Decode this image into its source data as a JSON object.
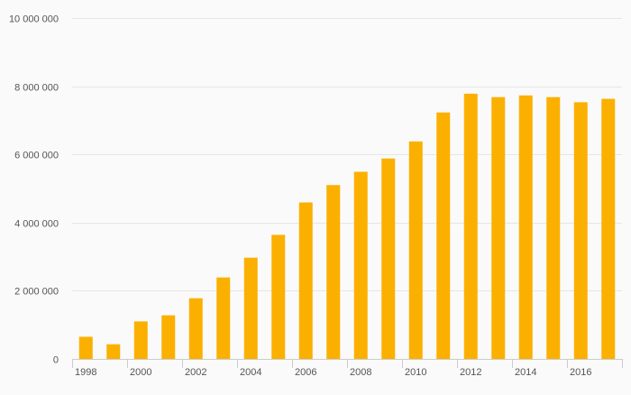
{
  "chart_data": {
    "type": "bar",
    "title": "",
    "xlabel": "",
    "ylabel": "",
    "categories": [
      "1998",
      "1999",
      "2000",
      "2001",
      "2002",
      "2003",
      "2004",
      "2005",
      "2006",
      "2007",
      "2008",
      "2009",
      "2010",
      "2011",
      "2012",
      "2013",
      "2014",
      "2015",
      "2016",
      "2017"
    ],
    "x_tick_labels": [
      "1998",
      "",
      "2000",
      "",
      "2002",
      "",
      "2004",
      "",
      "2006",
      "",
      "2008",
      "",
      "2010",
      "",
      "2012",
      "",
      "2014",
      "",
      "2016",
      ""
    ],
    "values": [
      650000,
      430000,
      1100000,
      1280000,
      1780000,
      2390000,
      2970000,
      3640000,
      4590000,
      5100000,
      5490000,
      5880000,
      6380000,
      7230000,
      7780000,
      7680000,
      7730000,
      7680000,
      7530000,
      7630000
    ],
    "ylim": [
      0,
      10000000
    ],
    "y_ticks": [
      {
        "value": 0,
        "label": "0"
      },
      {
        "value": 2000000,
        "label": "2 000 000"
      },
      {
        "value": 4000000,
        "label": "4 000 000"
      },
      {
        "value": 6000000,
        "label": "6 000 000"
      },
      {
        "value": 8000000,
        "label": "8 000 000"
      },
      {
        "value": 10000000,
        "label": "10 000 000"
      }
    ],
    "grid": true,
    "legend": "none",
    "colors": {
      "bar": "#fbb000",
      "grid": "#e6e6e6",
      "axis": "#cccccc",
      "text": "#555555",
      "background": "#fafafa"
    }
  }
}
